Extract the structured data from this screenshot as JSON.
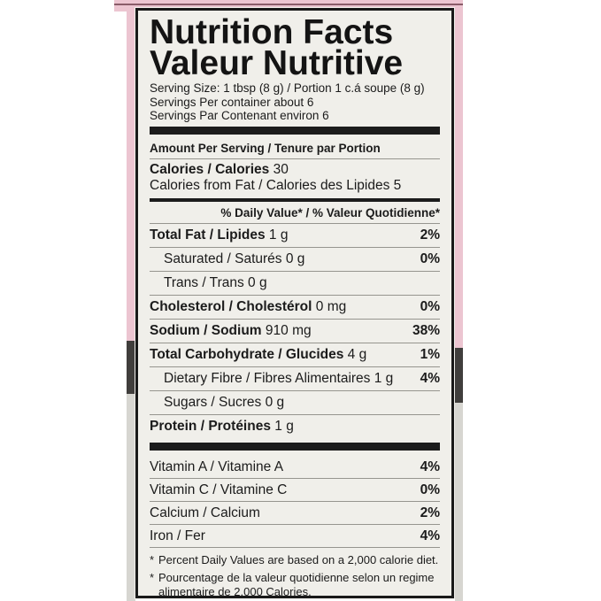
{
  "colors": {
    "package_pink": "#ecc5d1",
    "package_pink_edge_line": "#8a5c69",
    "package_dark_band": "#403e3c",
    "package_gray_band": "#d7d6d1",
    "label_background": "#f0efea",
    "ink": "#1b1b1b"
  },
  "label": {
    "title_en": "Nutrition Facts",
    "title_fr": "Valeur Nutritive",
    "serving_lines": [
      "Serving Size: 1 tbsp (8 g) / Portion 1 c.á soupe (8 g)",
      "Servings Per container about 6",
      "Servings Par Contenant environ 6"
    ],
    "amount_per_serving": "Amount Per Serving / Tenure par Portion",
    "calories": {
      "label": "Calories / Calories",
      "value": "30",
      "from_fat": "Calories from Fat / Calories des Lipides 5"
    },
    "daily_value_header": "% Daily Value* / % Valeur Quotidienne*",
    "nutrient_rows": [
      {
        "name": "Total Fat / Lipides",
        "amount": "1 g",
        "dv": "2%"
      },
      {
        "name": "Saturated / Saturés",
        "amount": "0 g",
        "dv": "0%"
      },
      {
        "name": "Trans / Trans",
        "amount": "0 g",
        "dv": ""
      },
      {
        "name": "Cholesterol / Cholestérol",
        "amount": "0 mg",
        "dv": "0%"
      },
      {
        "name": "Sodium / Sodium",
        "amount": "910 mg",
        "dv": "38%"
      },
      {
        "name": "Total Carbohydrate / Glucides",
        "amount": "4 g",
        "dv": "1%"
      },
      {
        "name": "Dietary Fibre / Fibres Alimentaires",
        "amount": "1 g",
        "dv": "4%"
      },
      {
        "name": "Sugars / Sucres",
        "amount": "0 g",
        "dv": ""
      },
      {
        "name": "Protein / Protéines",
        "amount": "1 g",
        "dv": ""
      }
    ],
    "vitamin_rows": [
      {
        "name": "Vitamin A / Vitamine A",
        "dv": "4%"
      },
      {
        "name": "Vitamin C / Vitamine C",
        "dv": "0%"
      },
      {
        "name": "Calcium / Calcium",
        "dv": "2%"
      },
      {
        "name": "Iron / Fer",
        "dv": "4%"
      }
    ],
    "footnotes": [
      {
        "marker": "*",
        "text": "Percent Daily Values are based on a 2,000 calorie diet."
      },
      {
        "marker": "*",
        "text": "Pourcentage de la valeur quotidienne selon un regime alimentaire de 2,000 Calories."
      }
    ]
  }
}
